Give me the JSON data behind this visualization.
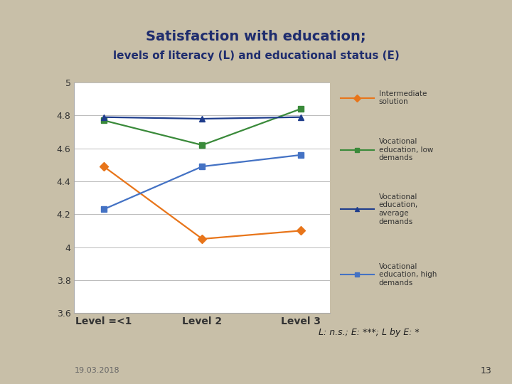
{
  "title_line1": "Satisfaction with education;",
  "title_line2": "levels of literacy (L) and educational status (E)",
  "title_color": "#1F2D6E",
  "background_color": "#C8BFA8",
  "plot_bg_color": "#FFFFFF",
  "x_labels": [
    "Level =<1",
    "Level 2",
    "Level 3"
  ],
  "x_positions": [
    0,
    1,
    2
  ],
  "ylim": [
    3.6,
    5.0
  ],
  "yticks": [
    3.6,
    3.8,
    4.0,
    4.2,
    4.4,
    4.6,
    4.8,
    5.0
  ],
  "series": [
    {
      "label": "Intermediate\nsolution",
      "color": "#E8751A",
      "marker": "D",
      "values": [
        4.49,
        4.05,
        4.1
      ]
    },
    {
      "label": "Vocational\neducation, low\ndemands",
      "color": "#3A8A3A",
      "marker": "s",
      "values": [
        4.77,
        4.62,
        4.84
      ]
    },
    {
      "label": "Vocational\neducation,\naverage\ndemands",
      "color": "#1F3D8C",
      "marker": "^",
      "values": [
        4.79,
        4.78,
        4.79
      ]
    },
    {
      "label": "Vocational\neducation, high\ndemands",
      "color": "#4472C4",
      "marker": "s",
      "values": [
        4.23,
        4.49,
        4.56
      ]
    }
  ],
  "footnote": "L: n.s.; E: ***; L by E: *",
  "date_text": "19.03.2018",
  "page_num": "13",
  "accent_bar_color": "#3A4A7A"
}
